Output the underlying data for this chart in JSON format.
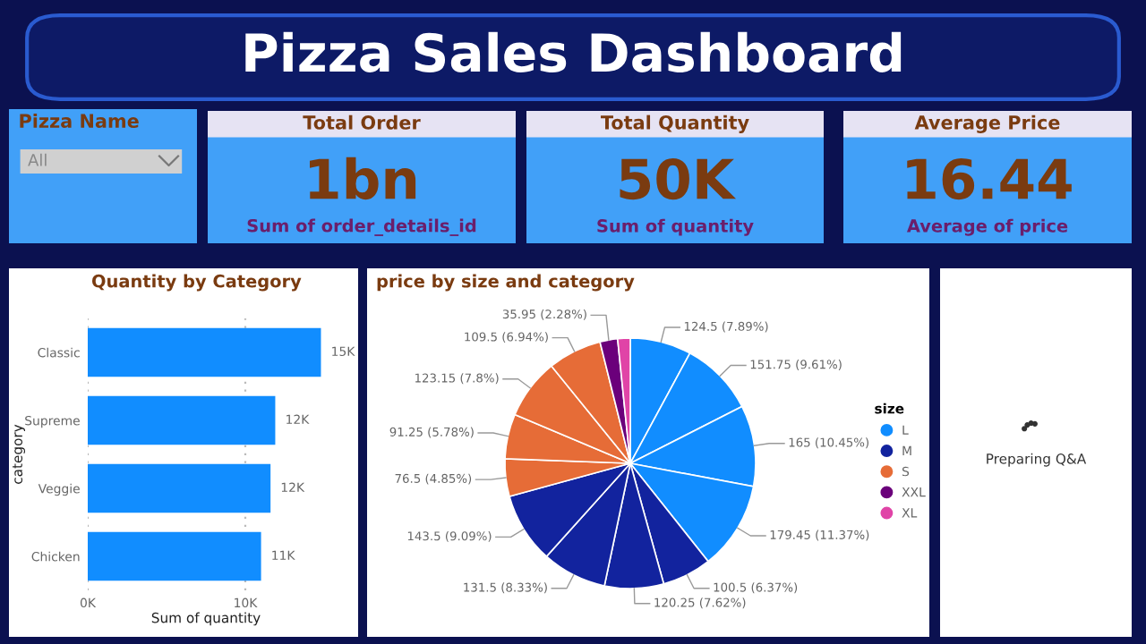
{
  "chart_data": [
    {
      "type": "other",
      "title": "Pizza Sales Dashboard"
    },
    {
      "type": "other",
      "title": "Pizza Name",
      "annotations": [
        "All"
      ]
    },
    {
      "type": "other",
      "title": "Total Order",
      "annotations": [
        "1bn",
        "Sum of order_details_id"
      ]
    },
    {
      "type": "other",
      "title": "Total Quantity",
      "annotations": [
        "50K",
        "Sum of quantity"
      ]
    },
    {
      "type": "other",
      "title": "Average Price",
      "annotations": [
        "16.44",
        "Average of price"
      ]
    },
    {
      "type": "bar",
      "orientation": "horizontal",
      "title": "Quantity by Category",
      "xlabel": "Sum of quantity",
      "ylabel": "category",
      "categories": [
        "Classic",
        "Supreme",
        "Veggie",
        "Chicken"
      ],
      "values": [
        14800,
        11900,
        11600,
        11000
      ],
      "value_labels": [
        "15K",
        "12K",
        "12K",
        "11K"
      ],
      "color": "#118dff",
      "xlim": [
        0,
        15000
      ],
      "xticks": [
        {
          "value": 0,
          "label": "0K"
        },
        {
          "value": 10000,
          "label": "10K"
        }
      ],
      "grid": "x"
    },
    {
      "type": "pie",
      "title": "price by size and category",
      "legend_title": "size",
      "legend": "right",
      "categories": [
        "L",
        null,
        null,
        null,
        "M",
        null,
        null,
        null,
        "S",
        null,
        null,
        null,
        "XXL",
        "XL"
      ],
      "values": [
        124.5,
        151.75,
        165,
        179.45,
        100.5,
        120.25,
        131.5,
        143.5,
        76.5,
        91.25,
        123.15,
        109.5,
        35.95,
        25.5
      ],
      "colors": [
        "#118dff",
        "#118dff",
        "#118dff",
        "#118dff",
        "#12239e",
        "#12239e",
        "#12239e",
        "#12239e",
        "#e66c37",
        "#e66c37",
        "#e66c37",
        "#e66c37",
        "#6b007b",
        "#e044a7"
      ],
      "value_labels": [
        "124.5 (7.89%)",
        "151.75 (9.61%)",
        "165 (10.45%)",
        "179.45 (11.37%)",
        "100.5 (6.37%)",
        "120.25 (7.62%)",
        "131.5 (8.33%)",
        "143.5 (9.09%)",
        "76.5 (4.85%)",
        "91.25 (5.78%)",
        "123.15 (7.8%)",
        "109.5 (6.94%)",
        "35.95 (2.28%)",
        null
      ]
    },
    {
      "type": "other",
      "annotations": [
        "Preparing Q&A"
      ]
    }
  ]
}
